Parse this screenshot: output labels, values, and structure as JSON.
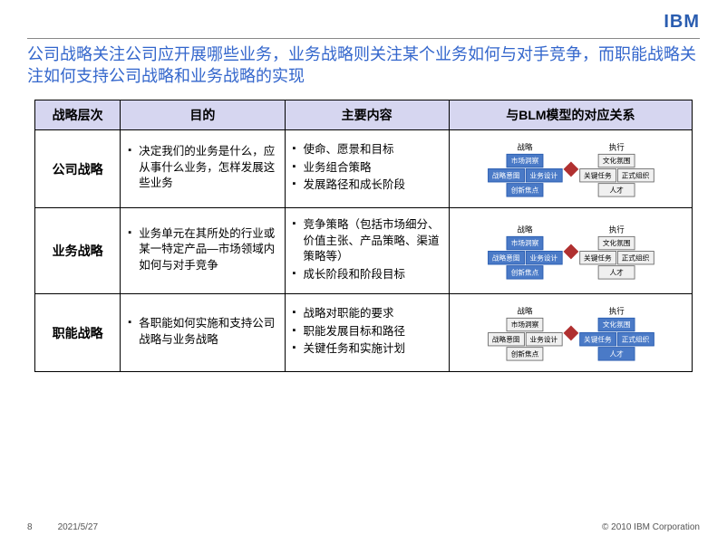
{
  "logo_text": "IBM",
  "title": "公司战略关注公司应开展哪些业务，业务战略则关注某个业务如何与对手竞争，而职能战略关注如何支持公司战略和业务战略的实现",
  "columns": [
    "战略层次",
    "目的",
    "主要内容",
    "与BLM模型的对应关系"
  ],
  "rows": [
    {
      "name": "公司战略",
      "purpose": [
        "决定我们的业务是什么，应从事什么业务，怎样发展这些业务"
      ],
      "content": [
        "使命、愿景和目标",
        "业务组合策略",
        "发展路径和成长阶段"
      ],
      "highlight": {
        "left": {
          "top": true,
          "midL": true,
          "midR": true,
          "bot": true
        },
        "right": {
          "top": false,
          "midL": false,
          "midR": false,
          "bot": false
        }
      }
    },
    {
      "name": "业务战略",
      "purpose": [
        "业务单元在其所处的行业或某一特定产品—市场领域内如何与对手竞争"
      ],
      "content": [
        "竞争策略（包括市场细分、价值主张、产品策略、渠道策略等）",
        "成长阶段和阶段目标"
      ],
      "highlight": {
        "left": {
          "top": true,
          "midL": true,
          "midR": true,
          "bot": true
        },
        "right": {
          "top": false,
          "midL": false,
          "midR": false,
          "bot": false
        }
      }
    },
    {
      "name": "职能战略",
      "purpose": [
        "各职能如何实施和支持公司战略与业务战略"
      ],
      "content": [
        "战略对职能的要求",
        "职能发展目标和路径",
        "关键任务和实施计划"
      ],
      "highlight": {
        "left": {
          "top": false,
          "midL": false,
          "midR": false,
          "bot": false
        },
        "right": {
          "top": true,
          "midL": true,
          "midR": true,
          "bot": true
        }
      }
    }
  ],
  "blm_labels": {
    "left_title": "战略",
    "right_title": "执行",
    "left": {
      "top": "市场洞察",
      "midL": "战略意图",
      "midR": "业务设计",
      "bot": "创新焦点"
    },
    "right": {
      "top": "文化氛围",
      "midL": "关键任务",
      "midR": "正式组织",
      "bot": "人才"
    }
  },
  "colors": {
    "title": "#3366cc",
    "header_bg": "#d6d6f0",
    "box_hl_bg": "#4a7ac7",
    "box_plain_bg": "#f0f0f0",
    "diamond": "#b03030",
    "logo": "#2a5db0"
  },
  "footer": {
    "page": "8",
    "date": "2021/5/27",
    "copyright": "© 2010 IBM Corporation"
  }
}
